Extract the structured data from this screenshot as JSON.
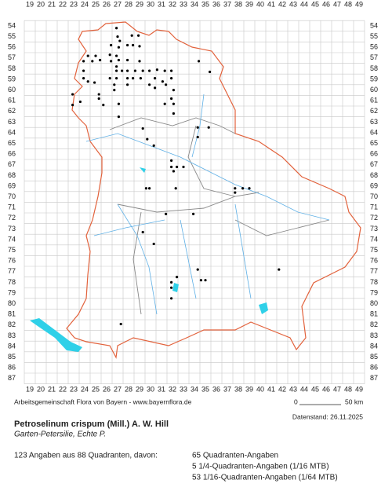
{
  "map": {
    "x_labels": [
      19,
      20,
      21,
      22,
      23,
      24,
      25,
      26,
      27,
      28,
      29,
      30,
      31,
      32,
      33,
      34,
      35,
      36,
      37,
      38,
      39,
      40,
      41,
      42,
      43,
      44,
      45,
      46,
      47,
      48,
      49
    ],
    "y_labels": [
      54,
      55,
      56,
      57,
      58,
      59,
      60,
      61,
      62,
      63,
      64,
      65,
      66,
      67,
      68,
      69,
      70,
      71,
      72,
      73,
      74,
      75,
      76,
      77,
      78,
      79,
      80,
      81,
      82,
      83,
      84,
      85,
      86,
      87
    ],
    "points": [
      [
        26.9,
        54.2
      ],
      [
        27.0,
        55.0
      ],
      [
        27.2,
        55.4
      ],
      [
        26.4,
        55.8
      ],
      [
        27.1,
        56.0
      ],
      [
        27.9,
        55.8
      ],
      [
        28.4,
        55.8
      ],
      [
        29.0,
        55.9
      ],
      [
        28.9,
        54.9
      ],
      [
        28.3,
        54.9
      ],
      [
        24.3,
        56.8
      ],
      [
        25.0,
        56.8
      ],
      [
        26.3,
        56.7
      ],
      [
        26.9,
        56.8
      ],
      [
        27.1,
        57.2
      ],
      [
        26.9,
        57.8
      ],
      [
        26.4,
        57.3
      ],
      [
        27.9,
        57.2
      ],
      [
        29.0,
        57.3
      ],
      [
        23.9,
        57.3
      ],
      [
        24.7,
        57.3
      ],
      [
        25.4,
        57.2
      ],
      [
        34.4,
        57.3
      ],
      [
        35.4,
        58.3
      ],
      [
        23.9,
        58.2
      ],
      [
        26.9,
        58.2
      ],
      [
        27.4,
        58.2
      ],
      [
        27.9,
        58.2
      ],
      [
        28.6,
        58.2
      ],
      [
        29.3,
        58.2
      ],
      [
        29.9,
        58.2
      ],
      [
        30.6,
        58.1
      ],
      [
        31.3,
        58.2
      ],
      [
        31.9,
        58.2
      ],
      [
        23.9,
        58.9
      ],
      [
        24.3,
        59.2
      ],
      [
        24.9,
        59.3
      ],
      [
        26.3,
        58.9
      ],
      [
        26.9,
        58.9
      ],
      [
        27.9,
        58.9
      ],
      [
        28.4,
        58.9
      ],
      [
        29.1,
        58.9
      ],
      [
        30.4,
        58.9
      ],
      [
        31.1,
        59.2
      ],
      [
        31.9,
        58.9
      ],
      [
        26.7,
        59.5
      ],
      [
        26.7,
        60.0
      ],
      [
        27.9,
        59.5
      ],
      [
        29.9,
        59.5
      ],
      [
        30.4,
        59.8
      ],
      [
        31.4,
        59.5
      ],
      [
        32.1,
        60.0
      ],
      [
        31.9,
        60.8
      ],
      [
        22.9,
        60.4
      ],
      [
        25.3,
        60.4
      ],
      [
        23.6,
        61.1
      ],
      [
        25.3,
        60.8
      ],
      [
        25.7,
        61.4
      ],
      [
        22.9,
        61.4
      ],
      [
        27.1,
        61.3
      ],
      [
        27.1,
        62.5
      ],
      [
        31.3,
        61.3
      ],
      [
        32.1,
        61.3
      ],
      [
        32.1,
        62.2
      ],
      [
        29.3,
        63.6
      ],
      [
        34.3,
        63.5
      ],
      [
        35.3,
        63.5
      ],
      [
        29.7,
        64.6
      ],
      [
        30.3,
        65.2
      ],
      [
        34.3,
        64.4
      ],
      [
        31.9,
        66.6
      ],
      [
        31.9,
        67.2
      ],
      [
        32.4,
        67.2
      ],
      [
        33.0,
        67.2
      ],
      [
        32.1,
        67.6
      ],
      [
        29.6,
        69.2
      ],
      [
        29.9,
        69.2
      ],
      [
        32.3,
        69.2
      ],
      [
        37.7,
        69.2
      ],
      [
        38.4,
        69.2
      ],
      [
        39.0,
        69.2
      ],
      [
        37.7,
        69.6
      ],
      [
        31.4,
        71.6
      ],
      [
        33.9,
        71.6
      ],
      [
        29.3,
        73.3
      ],
      [
        30.3,
        74.4
      ],
      [
        34.3,
        76.8
      ],
      [
        34.6,
        77.8
      ],
      [
        35.0,
        77.8
      ],
      [
        41.7,
        76.8
      ],
      [
        32.4,
        77.5
      ],
      [
        31.9,
        78.0
      ],
      [
        31.9,
        78.5
      ],
      [
        31.9,
        79.5
      ],
      [
        27.3,
        81.9
      ]
    ]
  },
  "footer": {
    "credit": "Arbeitsgemeinschaft Flora von Bayern - www.bayernflora.de",
    "scale_start": "0",
    "scale_end": "50 km",
    "date": "Datenstand: 26.11.2025"
  },
  "species": {
    "name": "Petroselinum crispum (Mill.) A. W. Hill",
    "common": "Garten-Petersilie, Echte P."
  },
  "stats": {
    "summary": "123 Angaben aus 88 Quadranten, davon:",
    "lines": [
      "65 Quadranten-Angaben",
      "5 1/4-Quadranten-Angaben (1/16 MTB)",
      "53 1/16-Quadranten-Angaben (1/64 MTB)"
    ]
  }
}
